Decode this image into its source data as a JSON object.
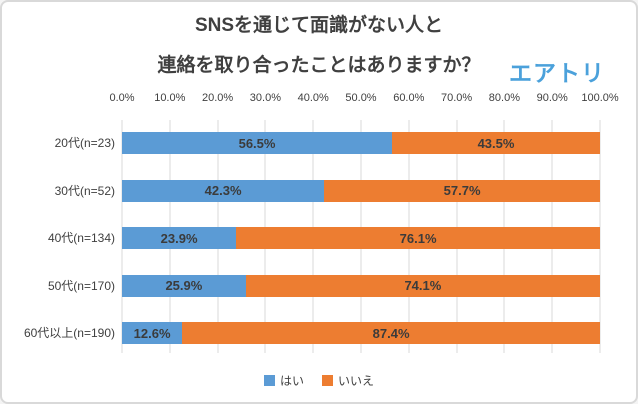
{
  "title": {
    "line1": "SNSを通じて面識がない人と",
    "line2": "連絡を取り合ったことはありますか？"
  },
  "logo": {
    "text": "エアトリ"
  },
  "legend": [
    {
      "label": "はい",
      "color": "#5B9BD5"
    },
    {
      "label": "いいえ",
      "color": "#ED7D31"
    }
  ],
  "colors": {
    "yes_blue": "#5B9BD5",
    "no_orange": "#ED7D31",
    "grid": "#D9D9D9",
    "text": "#404040",
    "logo_blue": "#4BA1DB",
    "border": "#D9D9D9"
  },
  "chart_data": {
    "type": "bar",
    "orientation": "horizontal",
    "stacked": true,
    "title": "SNSを通じて面識がない人と 連絡を取り合ったことはありますか？",
    "categories": [
      "20代(n=23)",
      "30代(n=52)",
      "40代(n=134)",
      "50代(n=170)",
      "60代以上(n=190)"
    ],
    "series": [
      {
        "name": "はい",
        "color": "#5B9BD5",
        "values": [
          56.5,
          42.3,
          23.9,
          25.9,
          12.6
        ]
      },
      {
        "name": "いいえ",
        "color": "#ED7D31",
        "values": [
          43.5,
          57.7,
          76.1,
          74.1,
          87.4
        ]
      }
    ],
    "x_ticks": [
      "0.0%",
      "10.0%",
      "20.0%",
      "30.0%",
      "40.0%",
      "50.0%",
      "60.0%",
      "70.0%",
      "80.0%",
      "90.0%",
      "100.0%"
    ],
    "xlim": [
      0,
      100
    ],
    "grid": true,
    "legend_position": "bottom",
    "value_suffix": "%"
  }
}
